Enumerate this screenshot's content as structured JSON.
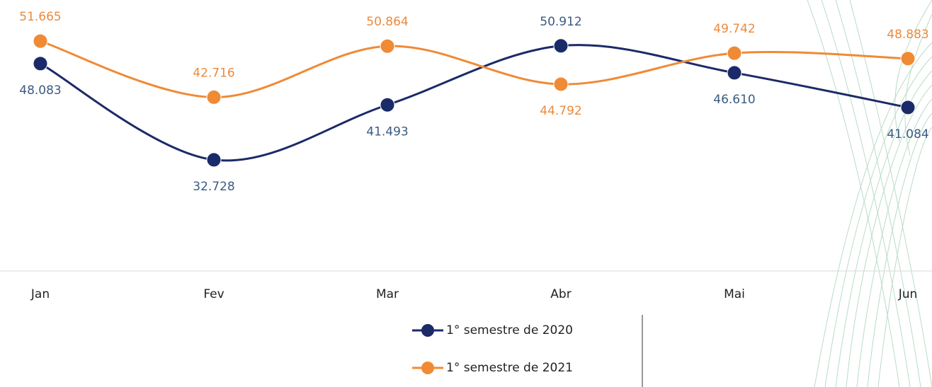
{
  "chart_data": {
    "type": "line",
    "categories": [
      "Jan",
      "Fev",
      "Mar",
      "Abr",
      "Mai",
      "Jun"
    ],
    "series": [
      {
        "name": "1° semestre de 2020",
        "color": "#1b2a68",
        "label_color": "#3b5b82",
        "values": [
          48083,
          32728,
          41493,
          50912,
          46610,
          41084
        ],
        "value_labels": [
          "48.083",
          "32.728",
          "41.493",
          "50.912",
          "46.610",
          "41.084"
        ]
      },
      {
        "name": "1° semestre de 2021",
        "color": "#f08a35",
        "label_color": "#ec8a3c",
        "values": [
          51665,
          42716,
          50864,
          44792,
          49742,
          48883
        ],
        "value_labels": [
          "51.665",
          "42.716",
          "50.864",
          "44.792",
          "49.742",
          "48.883"
        ]
      }
    ],
    "ylim": [
      15000,
      58000
    ],
    "smooth": true
  }
}
